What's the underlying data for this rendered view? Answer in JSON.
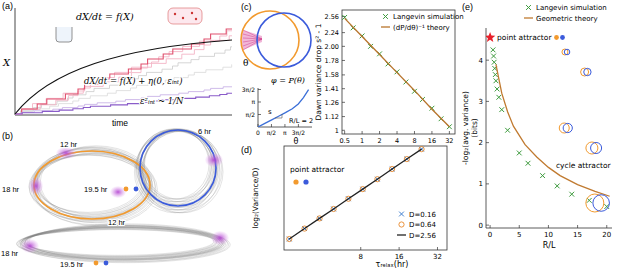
{
  "panels": {
    "a": {
      "label": "(a)",
      "equation_deterministic": "dX/dt = f(X)",
      "equation_noisy": "dX/dt = f(X) + η(0, εᵢₙₜ)",
      "noise_scaling": "ε²ᵢₙₜ ~ 1/N",
      "y_label": "X",
      "x_label": "time"
    },
    "b": {
      "label": "(b)",
      "upper_times": [
        "12 hr",
        "6 hr",
        "18 hr",
        "19.5 hr"
      ],
      "lower_times": [
        "12 hr",
        "18 hr",
        "19.5 hr"
      ]
    },
    "c": {
      "label": "(c)",
      "angle": "θ"
    },
    "d": {
      "label": "(d)"
    },
    "e": {
      "label": "(e)"
    }
  },
  "chart_data": [
    {
      "type": "line",
      "title": "φ = P(θ)",
      "x_label": "θ",
      "x": [
        0,
        0.8,
        1.6,
        2.4,
        3.2,
        4.0,
        4.7,
        5.3,
        5.9
      ],
      "values": [
        0,
        0.45,
        0.9,
        1.35,
        1.8,
        2.3,
        2.9,
        3.7,
        4.7
      ],
      "color": "#3b6fd8",
      "xlim": [
        0,
        6.3
      ],
      "ylim": [
        0,
        4.9
      ],
      "xticks": [
        0,
        {
          "value": 1.5708,
          "label": "π/2"
        },
        {
          "value": 3.1416,
          "label": "π"
        },
        {
          "value": 4.7124,
          "label": "3π/2"
        }
      ],
      "yticks": [
        {
          "value": 1.5708,
          "label": "π/2"
        },
        {
          "value": 3.1416,
          "label": "π"
        },
        {
          "value": 4.7124,
          "label": "3π/2"
        }
      ],
      "annotations": [
        "s",
        "R/L = 2"
      ]
    },
    {
      "type": "scatter",
      "y_label": "Dawn variance drop s² - 1",
      "log": true,
      "xlim": [
        0.45,
        40
      ],
      "ylim": [
        0.97,
        2.7
      ],
      "xticks": [
        0.5,
        1,
        2,
        4,
        8,
        16,
        32
      ],
      "yticks": [
        1,
        1.12,
        1.26,
        1.41,
        1.58,
        1.78,
        {
          "value": 2,
          "label": "2.00"
        },
        2.24,
        2.56
      ],
      "legend": "upper right",
      "series": [
        {
          "name": "Langevin simulation",
          "type": "scatter",
          "marker": "x",
          "color": "#3c9a3c",
          "x": [
            0.5,
            0.7,
            1,
            1.4,
            2,
            2.8,
            4,
            5.7,
            8,
            11,
            16,
            23,
            32
          ],
          "values": [
            2.54,
            2.33,
            2.18,
            2.0,
            1.88,
            1.73,
            1.62,
            1.49,
            1.38,
            1.29,
            1.2,
            1.1,
            1.03
          ]
        },
        {
          "name": "(dP/dθ)⁻¹ theory",
          "type": "line",
          "color": "#b8742c",
          "x": [
            0.5,
            1,
            2,
            4,
            8,
            16,
            32
          ],
          "values": [
            2.52,
            2.17,
            1.87,
            1.61,
            1.39,
            1.19,
            1.03
          ]
        }
      ]
    },
    {
      "type": "scatter",
      "x_label": "τᵣₑₗₐₓ(hr)",
      "y_label": "log₂(Variance/D)",
      "log": "x",
      "tick_labels": "x",
      "xlim": [
        2,
        38
      ],
      "ylim": [
        0.72,
        4.7
      ],
      "xticks": [
        8,
        16,
        32
      ],
      "legend": "lower right",
      "annotations": [
        "point attractor"
      ],
      "x": [
        2.2,
        2.9,
        3.8,
        4.9,
        6.4,
        8.3,
        10.8,
        14.1,
        18.4,
        24
      ],
      "series": [
        {
          "name": "D=0.16",
          "type": "scatter",
          "marker": "x",
          "color": "#3f7fd0",
          "values": [
            1.14,
            1.54,
            1.93,
            2.29,
            2.68,
            3.05,
            3.43,
            3.82,
            4.2,
            4.58
          ]
        },
        {
          "name": "D=0.64",
          "type": "scatter",
          "marker": "circle",
          "color": "#e8882a",
          "values": [
            1.14,
            1.54,
            1.93,
            2.29,
            2.68,
            3.05,
            3.43,
            3.82,
            4.2,
            4.58
          ]
        },
        {
          "name": "D=2.56",
          "type": "line",
          "color": "#222222",
          "values": [
            1.14,
            1.54,
            1.93,
            2.29,
            2.68,
            3.05,
            3.43,
            3.82,
            4.2,
            4.58
          ]
        }
      ]
    },
    {
      "type": "scatter",
      "x_label": "R/L",
      "y_label": [
        "-log₂(avg. variance)",
        "(bits)"
      ],
      "xlim": [
        -0.7,
        20.9
      ],
      "ylim": [
        -0.07,
        4.78
      ],
      "xticks": [
        0,
        5,
        10,
        15,
        20
      ],
      "yticks": [
        0,
        1,
        2,
        3,
        4
      ],
      "legend": "upper right",
      "annotations": [
        "cycle attractor"
      ],
      "series": [
        {
          "name": "point attractor",
          "type": "scatter",
          "marker": "star",
          "color": "#e8202a",
          "x": [
            0
          ],
          "values": [
            4.55
          ]
        },
        {
          "name": "Langevin simulation",
          "type": "scatter",
          "marker": "x",
          "color": "#3c9a3c",
          "x": [
            0.5,
            0.6,
            0.7,
            0.8,
            0.9,
            1.0,
            1.2,
            1.5,
            2,
            3,
            5,
            6.5,
            9,
            11.5,
            14,
            17,
            20
          ],
          "values": [
            4.25,
            4.1,
            3.95,
            3.8,
            3.65,
            3.5,
            3.3,
            3.1,
            2.8,
            2.3,
            1.75,
            1.5,
            1.2,
            0.95,
            0.75,
            0.6,
            0.45
          ]
        },
        {
          "name": "Geometric theory",
          "type": "line",
          "color": "#c07a30",
          "x": [
            1,
            2,
            3,
            4,
            6,
            8,
            10,
            12,
            15,
            18,
            20.5
          ],
          "values": [
            3.9,
            3.2,
            2.75,
            2.4,
            1.95,
            1.65,
            1.4,
            1.2,
            0.98,
            0.82,
            0.7
          ]
        }
      ]
    }
  ]
}
